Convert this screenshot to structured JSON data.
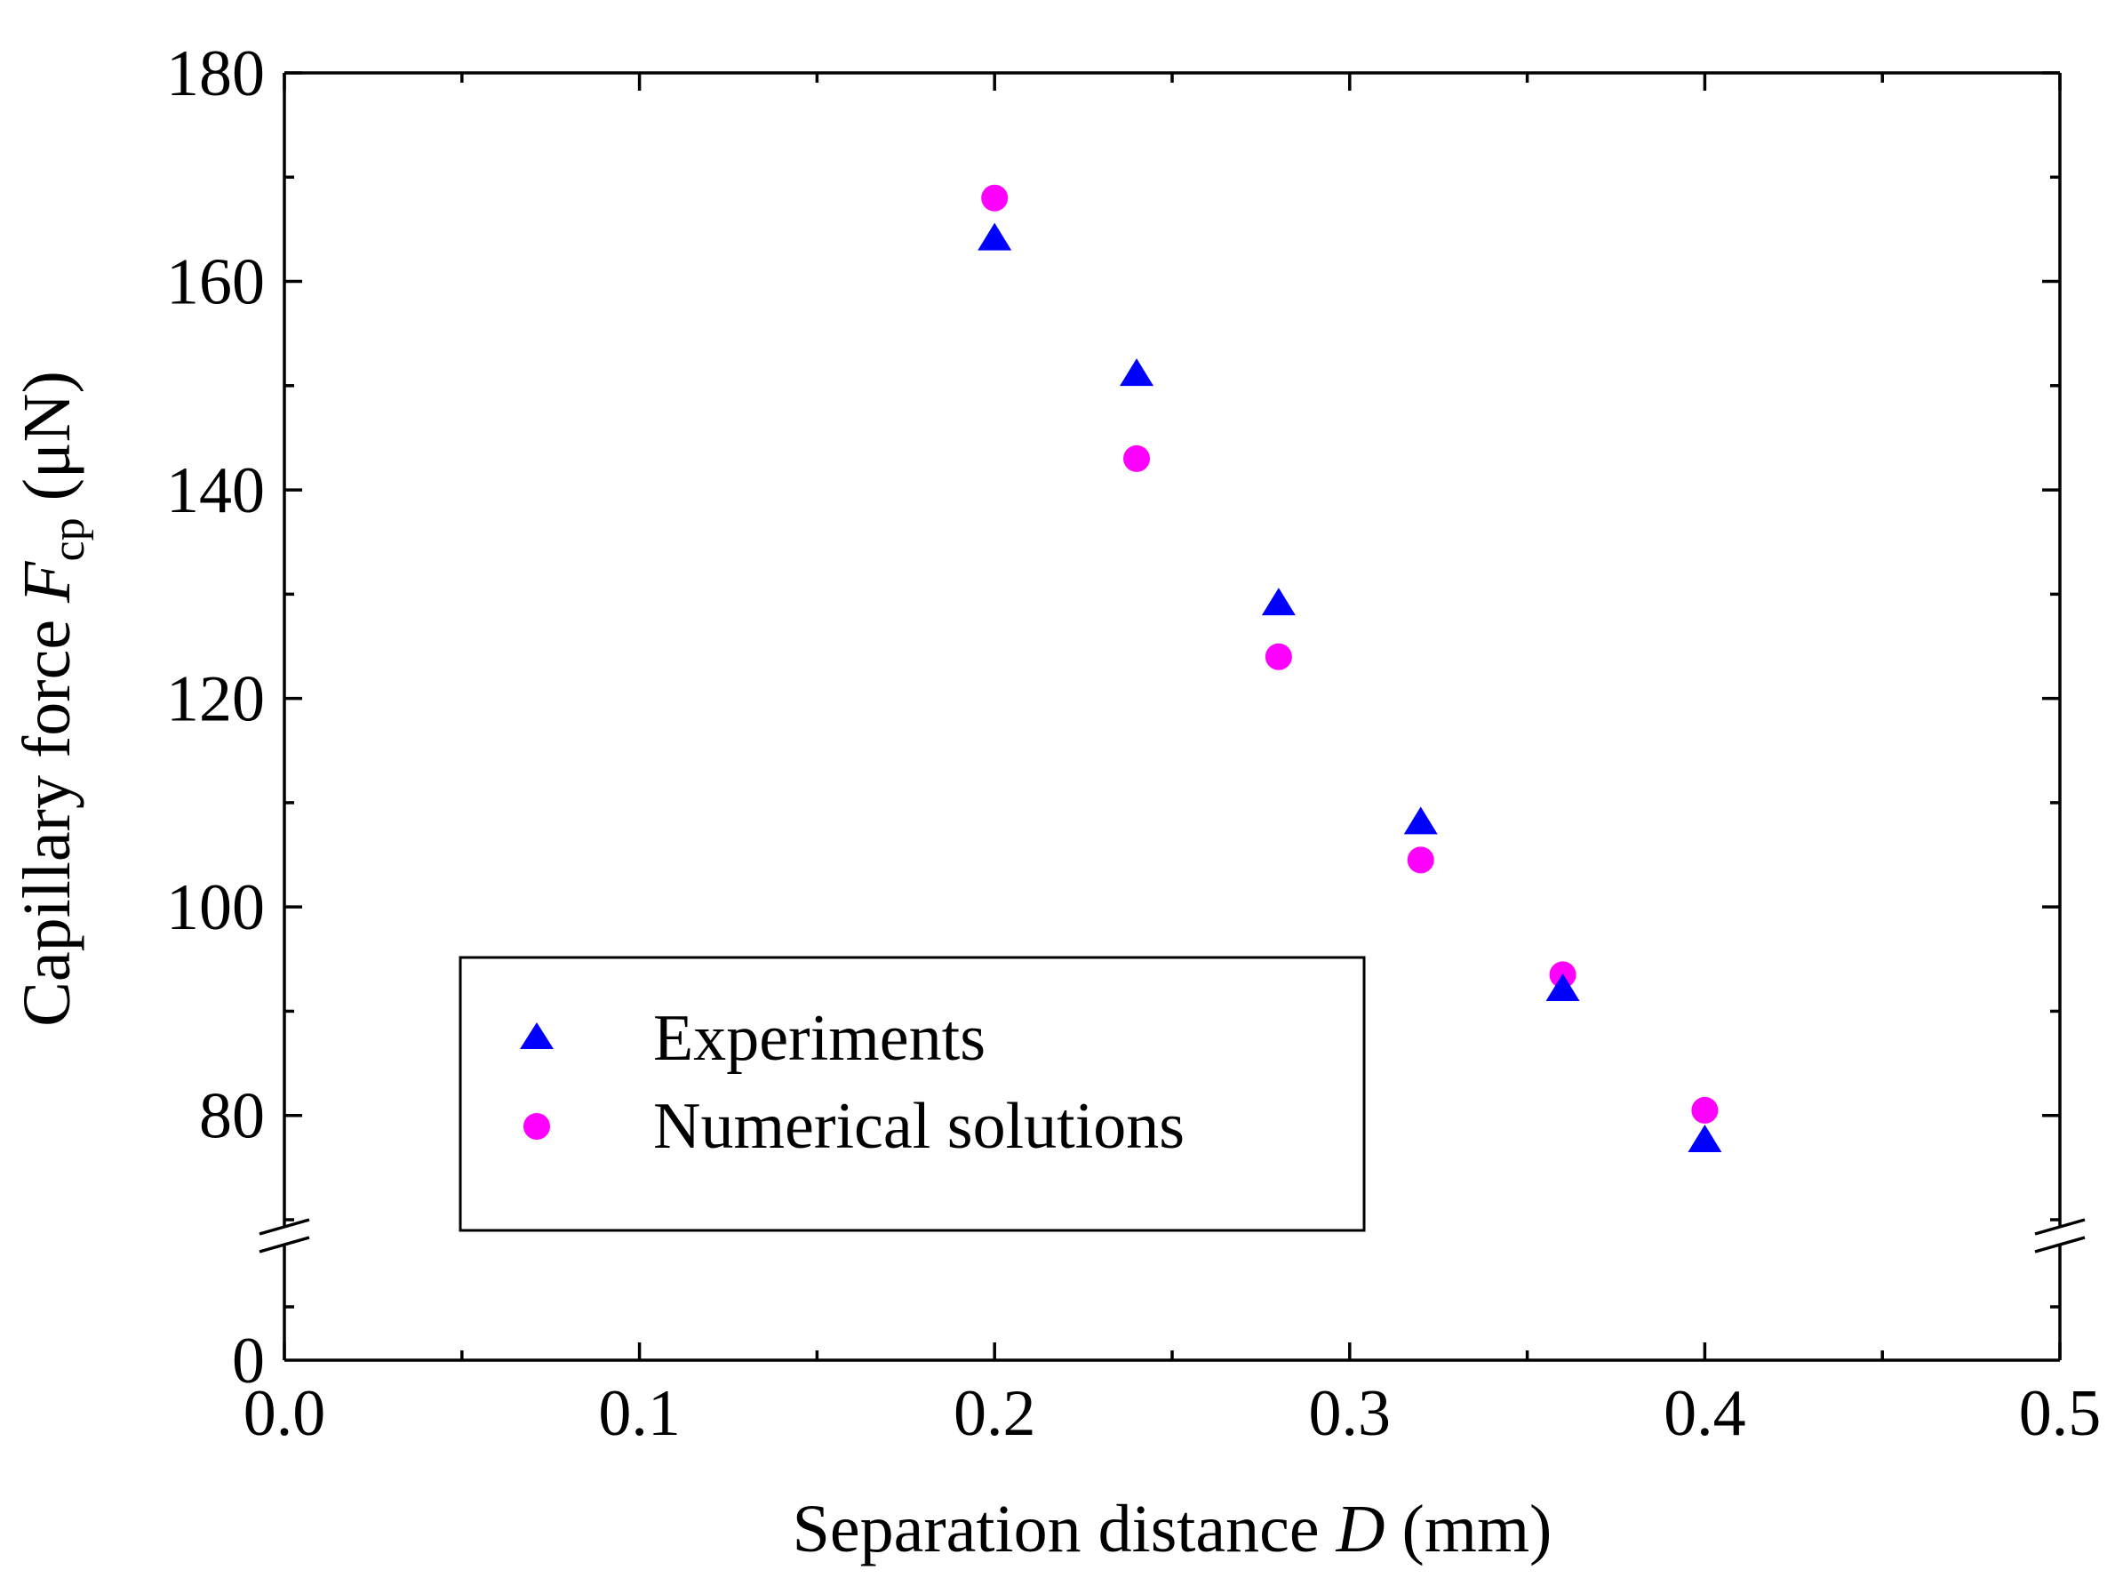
{
  "chart_data": {
    "type": "scatter",
    "title": "",
    "xlabel": {
      "prefix": "Separation distance ",
      "symbol": "D",
      "suffix": " (mm)"
    },
    "ylabel": {
      "prefix": "Capillary force  ",
      "symbol": "F",
      "subscript": "cp",
      "suffix": " (μN)"
    },
    "xlim": [
      0.0,
      0.5
    ],
    "x_ticks": [
      "0.0",
      "0.1",
      "0.2",
      "0.3",
      "0.4",
      "0.5"
    ],
    "x_tick_values": [
      0.0,
      0.1,
      0.2,
      0.3,
      0.4,
      0.5
    ],
    "x_minor_ticks": [
      0.05,
      0.15,
      0.25,
      0.35,
      0.45
    ],
    "ylim_upper": [
      70,
      180
    ],
    "ylim_lower": [
      0,
      10
    ],
    "axis_break": "y between 70 and 0",
    "y_ticks": [
      "80",
      "100",
      "120",
      "140",
      "160",
      "180"
    ],
    "y_tick_values": [
      80,
      100,
      120,
      140,
      160,
      180
    ],
    "y_minor_ticks": [
      70,
      90,
      110,
      130,
      150,
      170
    ],
    "y_lower_tick": {
      "value": 0,
      "label": "0"
    },
    "grid": false,
    "legend_position": "bottom-left",
    "series": [
      {
        "name": "Experiments",
        "marker": "triangle",
        "color": "#0000ff",
        "x": [
          0.2,
          0.24,
          0.28,
          0.32,
          0.36,
          0.4
        ],
        "y": [
          164,
          151,
          129,
          108,
          92,
          77.5
        ]
      },
      {
        "name": "Numerical solutions",
        "marker": "circle",
        "color": "#ff00ff",
        "x": [
          0.2,
          0.24,
          0.28,
          0.32,
          0.36,
          0.4
        ],
        "y": [
          168,
          143,
          124,
          104.5,
          93.5,
          80.5
        ]
      }
    ]
  }
}
